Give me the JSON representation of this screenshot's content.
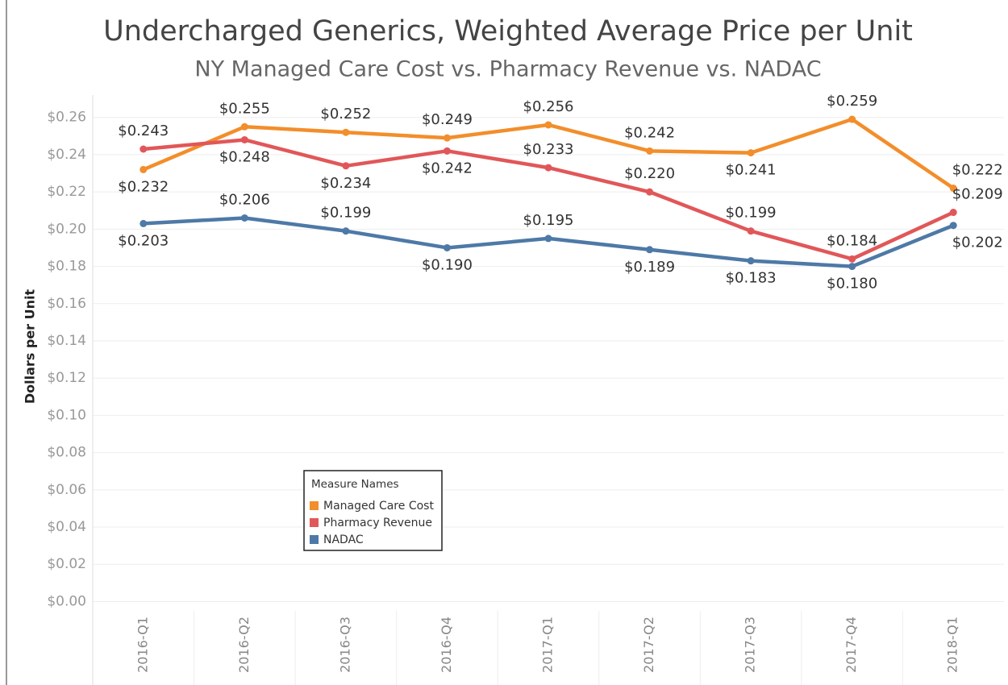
{
  "chart_data": {
    "type": "line",
    "title": "Undercharged Generics, Weighted Average Price per Unit",
    "subtitle": "NY Managed Care Cost vs. Pharmacy Revenue vs. NADAC",
    "y_label": "Dollars per Unit",
    "categories": [
      "2016-Q1",
      "2016-Q2",
      "2016-Q3",
      "2016-Q4",
      "2017-Q1",
      "2017-Q2",
      "2017-Q3",
      "2017-Q4",
      "2018-Q1"
    ],
    "series": [
      {
        "name": "Managed Care Cost",
        "color": "#f28e2b",
        "values": [
          0.232,
          0.255,
          0.252,
          0.249,
          0.256,
          0.242,
          0.241,
          0.259,
          0.222
        ],
        "value_labels": [
          "$0.232",
          "$0.255",
          "$0.252",
          "$0.249",
          "$0.256",
          "$0.242",
          "$0.241",
          "$0.259",
          "$0.222"
        ]
      },
      {
        "name": "Pharmacy Revenue",
        "color": "#e15759",
        "values": [
          0.243,
          0.248,
          0.234,
          0.242,
          0.233,
          0.22,
          0.199,
          0.184,
          0.209
        ],
        "value_labels": [
          "$0.243",
          "$0.248",
          "$0.234",
          "$0.242",
          "$0.233",
          "$0.220",
          "$0.199",
          "$0.184",
          "$0.209"
        ]
      },
      {
        "name": "NADAC",
        "color": "#4e79a7",
        "values": [
          0.203,
          0.206,
          0.199,
          0.19,
          0.195,
          0.189,
          0.183,
          0.18,
          0.202
        ],
        "value_labels": [
          "$0.203",
          "$0.206",
          "$0.199",
          "$0.190",
          "$0.195",
          "$0.189",
          "$0.183",
          "$0.180",
          "$0.202"
        ]
      }
    ],
    "ylim": [
      -0.005,
      0.272
    ],
    "yticks": [
      {
        "value": 0,
        "label": "$0.00"
      },
      {
        "value": 0.02,
        "label": "$0.02"
      },
      {
        "value": 0.04,
        "label": "$0.04"
      },
      {
        "value": 0.06,
        "label": "$0.06"
      },
      {
        "value": 0.08,
        "label": "$0.08"
      },
      {
        "value": 0.1,
        "label": "$0.10"
      },
      {
        "value": 0.12,
        "label": "$0.12"
      },
      {
        "value": 0.14,
        "label": "$0.14"
      },
      {
        "value": 0.16,
        "label": "$0.16"
      },
      {
        "value": 0.18,
        "label": "$0.18"
      },
      {
        "value": 0.2,
        "label": "$0.20"
      },
      {
        "value": 0.22,
        "label": "$0.22"
      },
      {
        "value": 0.24,
        "label": "$0.24"
      },
      {
        "value": 0.26,
        "label": "$0.26"
      }
    ],
    "grid": true,
    "legend_title": "Measure Names",
    "legend": "lower left"
  }
}
